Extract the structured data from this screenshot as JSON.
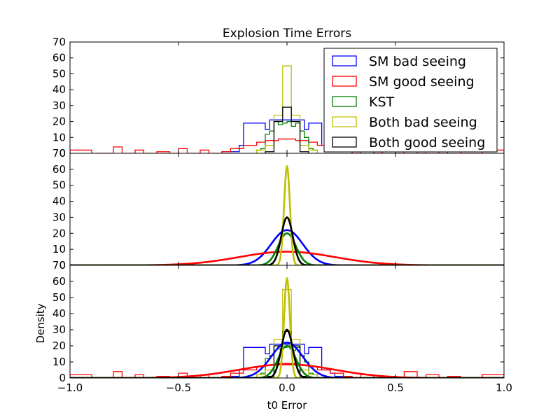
{
  "chart_data": {
    "type": "line",
    "title": "Explosion Time Errors",
    "xlabel": "t0 Error",
    "ylabel": "Density",
    "xlim": [
      -1.0,
      1.0
    ],
    "ylim": [
      0,
      70
    ],
    "x_ticks": [
      "−1.0",
      "−0.5",
      "0.0",
      "0.5",
      "1.0"
    ],
    "y_ticks": [
      "0",
      "10",
      "20",
      "30",
      "40",
      "50",
      "60",
      "70"
    ],
    "legend_position": "top-right",
    "grid": false,
    "series": [
      {
        "name": "SM bad seeing",
        "color": "#0000ff",
        "hist": {
          "edges": [
            -0.3,
            -0.22,
            -0.2,
            -0.1,
            -0.08,
            0.08,
            0.1,
            0.16,
            0.2,
            0.22,
            0.3
          ],
          "values": [
            1,
            5,
            19,
            15,
            21,
            15,
            19,
            5,
            3,
            1
          ]
        },
        "gaussian": {
          "mu": 0.0,
          "sigma": 0.0725,
          "peak": 22
        }
      },
      {
        "name": "SM good seeing",
        "color": "#ff0000",
        "hist": {
          "edges": [
            -1.0,
            -0.9,
            -0.8,
            -0.76,
            -0.7,
            -0.66,
            -0.6,
            -0.54,
            -0.5,
            -0.46,
            -0.4,
            -0.36,
            -0.3,
            -0.26,
            -0.2,
            -0.14,
            -0.1,
            -0.04,
            0.04,
            0.1,
            0.14,
            0.2,
            0.26,
            0.3,
            0.34,
            0.4,
            0.44,
            0.5,
            0.54,
            0.6,
            0.64,
            0.7,
            0.74,
            0.8,
            0.9,
            1.0
          ],
          "values": [
            2,
            0,
            4,
            0,
            2,
            0,
            1,
            0,
            3,
            0,
            2,
            0,
            1,
            3,
            5,
            7,
            8,
            9,
            8,
            7,
            5,
            3,
            1,
            0,
            2,
            0,
            1,
            0,
            4,
            0,
            2,
            0,
            1,
            0,
            2
          ]
        },
        "gaussian": {
          "mu": 0.0,
          "sigma": 0.22,
          "peak": 8.5
        }
      },
      {
        "name": "KST",
        "color": "#008000",
        "hist": {
          "edges": [
            -0.14,
            -0.12,
            -0.1,
            -0.08,
            -0.06,
            -0.04,
            -0.02,
            0.0,
            0.02,
            0.04,
            0.06,
            0.08,
            0.1,
            0.12,
            0.14
          ],
          "values": [
            2,
            3,
            12,
            14,
            20,
            18,
            19,
            20,
            17,
            19,
            14,
            10,
            3,
            2
          ]
        },
        "gaussian": {
          "mu": 0.0,
          "sigma": 0.0405,
          "peak": 20
        }
      },
      {
        "name": "Both bad seeing",
        "color": "#bfbf00",
        "hist": {
          "edges": [
            -0.14,
            -0.1,
            -0.06,
            -0.02,
            0.02,
            0.06,
            0.1,
            0.14
          ],
          "values": [
            2,
            5,
            24,
            55,
            24,
            5,
            2
          ]
        },
        "gaussian": {
          "mu": 0.0,
          "sigma": 0.0135,
          "peak": 62
        }
      },
      {
        "name": "Both good seeing",
        "color": "#000000",
        "hist": {
          "edges": [
            -0.1,
            -0.06,
            -0.02,
            0.02,
            0.06,
            0.1
          ],
          "values": [
            1,
            20,
            29,
            20,
            1
          ]
        },
        "gaussian": {
          "mu": 0.0,
          "sigma": 0.0265,
          "peak": 30
        }
      }
    ]
  }
}
